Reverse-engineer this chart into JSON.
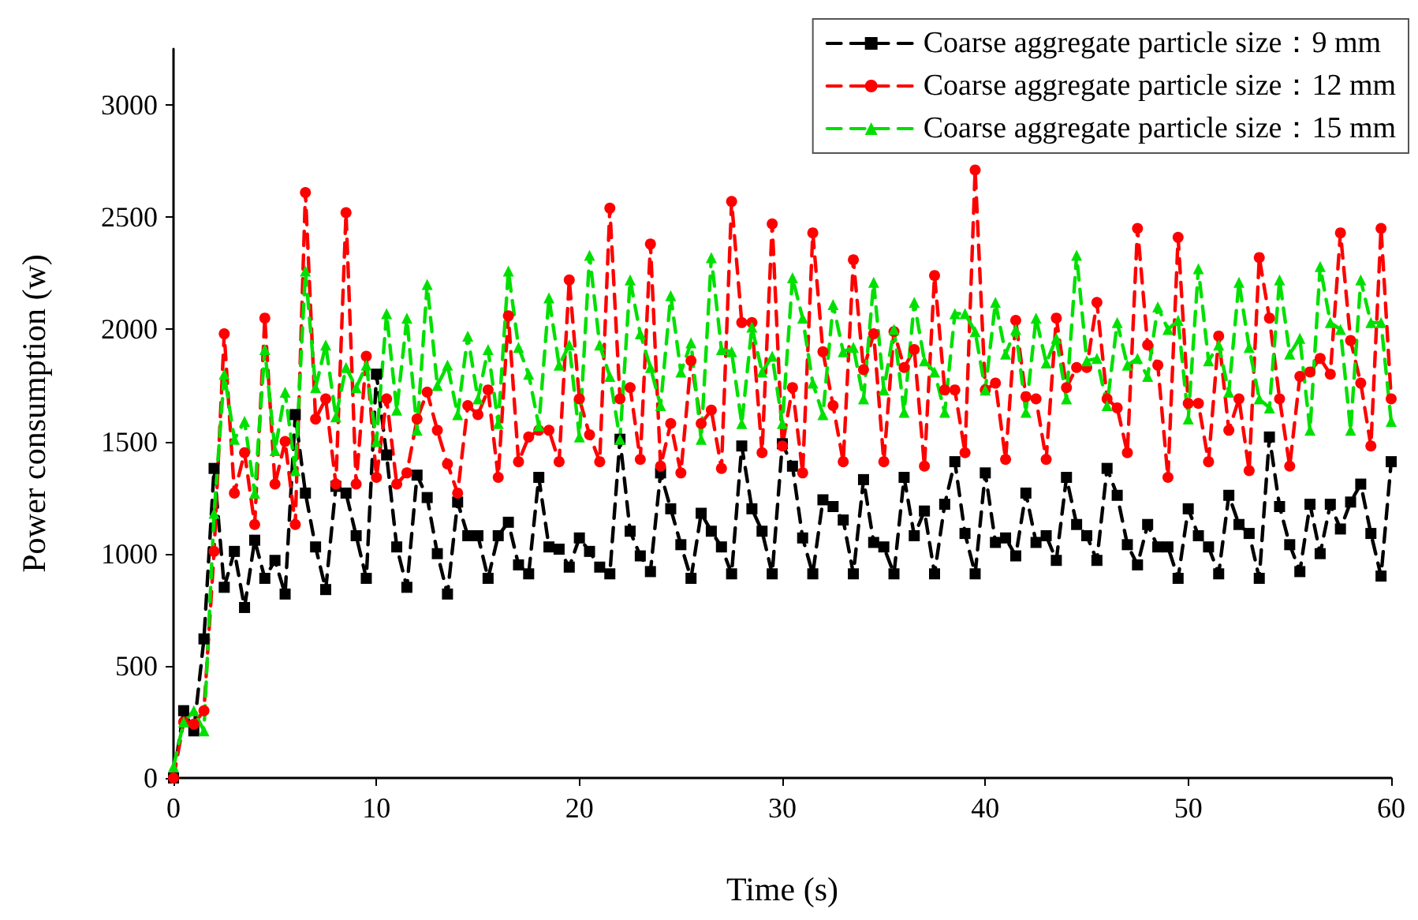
{
  "chart_data": {
    "type": "line",
    "xlabel": "Time (s)",
    "ylabel": "Power consumption (w)",
    "x": [
      0,
      0.5,
      1,
      1.5,
      2,
      2.5,
      3,
      3.5,
      4,
      4.5,
      5,
      5.5,
      6,
      6.5,
      7,
      7.5,
      8,
      8.5,
      9,
      9.5,
      10,
      10.5,
      11,
      11.5,
      12,
      12.5,
      13,
      13.5,
      14,
      14.5,
      15,
      15.5,
      16,
      16.5,
      17,
      17.5,
      18,
      18.5,
      19,
      19.5,
      20,
      20.5,
      21,
      21.5,
      22,
      22.5,
      23,
      23.5,
      24,
      24.5,
      25,
      25.5,
      26,
      26.5,
      27,
      27.5,
      28,
      28.5,
      29,
      29.5,
      30,
      30.5,
      31,
      31.5,
      32,
      32.5,
      33,
      33.5,
      34,
      34.5,
      35,
      35.5,
      36,
      36.5,
      37,
      37.5,
      38,
      38.5,
      39,
      39.5,
      40,
      40.5,
      41,
      41.5,
      42,
      42.5,
      43,
      43.5,
      44,
      44.5,
      45,
      45.5,
      46,
      46.5,
      47,
      47.5,
      48,
      48.5,
      49,
      49.5,
      50,
      50.5,
      51,
      51.5,
      52,
      52.5,
      53,
      53.5,
      54,
      54.5,
      55,
      55.5,
      56,
      56.5,
      57,
      57.5,
      58,
      58.5,
      59,
      59.5,
      60
    ],
    "series": [
      {
        "name": "Coarse aggregate particle size：9 mm",
        "color": "#000000",
        "marker": "square",
        "values": [
          0,
          300,
          210,
          620,
          1380,
          850,
          1010,
          760,
          1060,
          890,
          970,
          820,
          1620,
          1270,
          1030,
          840,
          1300,
          1270,
          1080,
          890,
          1800,
          1440,
          1030,
          850,
          1350,
          1250,
          1000,
          820,
          1230,
          1080,
          1080,
          890,
          1080,
          1140,
          950,
          910,
          1340,
          1030,
          1020,
          940,
          1070,
          1010,
          940,
          910,
          1510,
          1100,
          990,
          920,
          1360,
          1200,
          1040,
          890,
          1180,
          1100,
          1030,
          910,
          1480,
          1200,
          1100,
          910,
          1490,
          1390,
          1070,
          910,
          1240,
          1210,
          1150,
          910,
          1330,
          1050,
          1030,
          910,
          1340,
          1080,
          1190,
          910,
          1220,
          1410,
          1090,
          910,
          1360,
          1050,
          1070,
          990,
          1270,
          1050,
          1080,
          970,
          1340,
          1130,
          1080,
          970,
          1380,
          1260,
          1040,
          950,
          1130,
          1030,
          1030,
          890,
          1200,
          1080,
          1030,
          910,
          1260,
          1130,
          1090,
          890,
          1520,
          1210,
          1040,
          920,
          1220,
          1000,
          1220,
          1110,
          1230,
          1310,
          1090,
          900,
          1410
        ]
      },
      {
        "name": "Coarse aggregate particle size：12 mm",
        "color": "#ff0000",
        "marker": "circle",
        "values": [
          0,
          250,
          240,
          300,
          1010,
          1980,
          1270,
          1450,
          1130,
          2050,
          1310,
          1500,
          1130,
          2610,
          1600,
          1690,
          1310,
          2520,
          1310,
          1880,
          1340,
          1690,
          1310,
          1360,
          1600,
          1720,
          1550,
          1400,
          1270,
          1660,
          1620,
          1730,
          1340,
          2060,
          1410,
          1520,
          1550,
          1550,
          1410,
          2220,
          1690,
          1530,
          1410,
          2540,
          1690,
          1740,
          1420,
          2380,
          1390,
          1580,
          1360,
          1860,
          1580,
          1640,
          1380,
          2570,
          2030,
          2030,
          1450,
          2470,
          1480,
          1740,
          1360,
          2430,
          1900,
          1660,
          1410,
          2310,
          1820,
          1980,
          1410,
          1990,
          1830,
          1910,
          1390,
          2240,
          1730,
          1730,
          1450,
          2710,
          1730,
          1760,
          1420,
          2040,
          1700,
          1690,
          1420,
          2050,
          1740,
          1830,
          1830,
          2120,
          1690,
          1650,
          1450,
          2450,
          1930,
          1840,
          1340,
          2410,
          1670,
          1670,
          1410,
          1970,
          1550,
          1690,
          1370,
          2320,
          2050,
          1690,
          1390,
          1790,
          1810,
          1870,
          1800,
          2430,
          1950,
          1760,
          1480,
          2450,
          1690
        ]
      },
      {
        "name": "Coarse aggregate particle size：15 mm",
        "color": "#00e000",
        "marker": "triangle",
        "values": [
          50,
          250,
          300,
          210,
          1180,
          1800,
          1510,
          1590,
          1270,
          1910,
          1460,
          1720,
          1370,
          2260,
          1740,
          1930,
          1610,
          1830,
          1740,
          1840,
          1500,
          2070,
          1640,
          2050,
          1550,
          2200,
          1750,
          1840,
          1620,
          1970,
          1690,
          1910,
          1580,
          2260,
          1920,
          1800,
          1570,
          2140,
          1840,
          1930,
          1520,
          2330,
          1930,
          1790,
          1510,
          2220,
          1980,
          1830,
          1660,
          2150,
          1810,
          1940,
          1510,
          2320,
          1910,
          1900,
          1580,
          2010,
          1810,
          1880,
          1580,
          2230,
          2050,
          1760,
          1620,
          2110,
          1900,
          1920,
          1690,
          2210,
          1730,
          2000,
          1630,
          2120,
          1860,
          1810,
          1630,
          2070,
          2070,
          1990,
          1730,
          2120,
          1890,
          2000,
          1630,
          2050,
          1850,
          1960,
          1690,
          2330,
          1860,
          1870,
          1660,
          2030,
          1840,
          1870,
          1790,
          2100,
          2000,
          2040,
          1600,
          2270,
          1860,
          1930,
          1720,
          2210,
          1920,
          1690,
          1650,
          2220,
          1890,
          1960,
          1550,
          2280,
          2030,
          2000,
          1550,
          2220,
          2030,
          2030,
          1590
        ]
      }
    ],
    "xlim": [
      0,
      60
    ],
    "xticks": [
      0,
      10,
      20,
      30,
      40,
      50,
      60
    ],
    "ylim": [
      0,
      3250
    ],
    "yticks": [
      0,
      500,
      1000,
      1500,
      2000,
      2500,
      3000
    ],
    "legend": "top right",
    "line_style": "dashed",
    "grid": false
  }
}
